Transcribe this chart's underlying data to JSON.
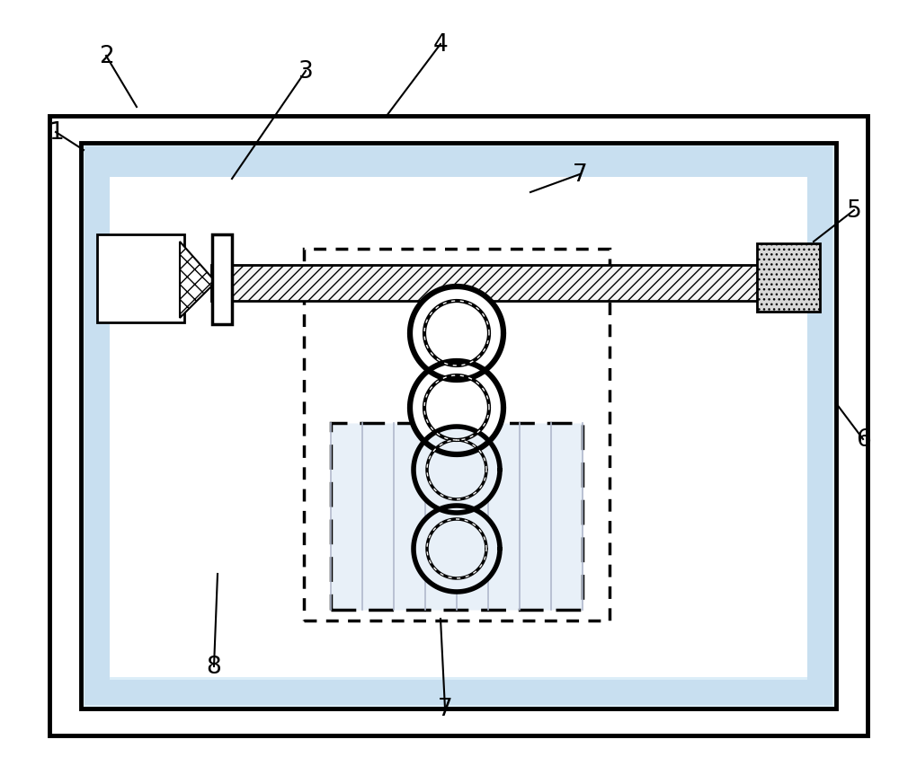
{
  "fig_width": 10.0,
  "fig_height": 8.54,
  "dpi": 100,
  "bg_color": "#ffffff",
  "label_fontsize": 19
}
